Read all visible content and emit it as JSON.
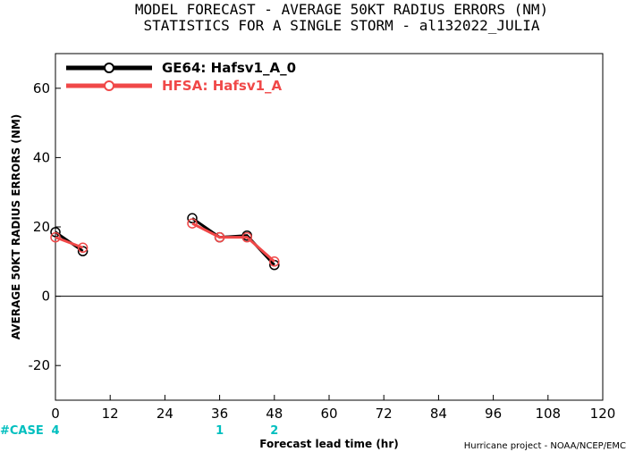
{
  "chart_data": {
    "type": "line",
    "title": "MODEL FORECAST - AVERAGE 50KT RADIUS ERRORS (NM)",
    "subtitle": "STATISTICS FOR A SINGLE STORM - al132022_JULIA",
    "xlabel": "Forecast lead time (hr)",
    "ylabel": "AVERAGE 50KT RADIUS ERRORS (NM)",
    "xlim": [
      0,
      120
    ],
    "ylim": [
      -30,
      70
    ],
    "xticks": [
      0,
      12,
      24,
      36,
      48,
      60,
      72,
      84,
      96,
      108,
      120
    ],
    "yticks": [
      -20,
      0,
      20,
      40,
      60
    ],
    "zero_line": true,
    "grid": false,
    "legend_position": "top-left",
    "series": [
      {
        "name": "GE64: Hafsv1_A_0",
        "color": "#000000",
        "segments": [
          [
            [
              0,
              18.5
            ],
            [
              6,
              13
            ]
          ],
          [
            [
              30,
              22.5
            ],
            [
              36,
              17
            ],
            [
              42,
              17.5
            ],
            [
              48,
              9
            ]
          ]
        ]
      },
      {
        "name": "HFSA: Hafsv1_A",
        "color": "#f04848",
        "segments": [
          [
            [
              0,
              17
            ],
            [
              6,
              14
            ]
          ],
          [
            [
              30,
              21
            ],
            [
              36,
              17
            ],
            [
              42,
              17
            ],
            [
              48,
              10
            ]
          ]
        ]
      }
    ],
    "case_label": "#CASE",
    "case_counts": [
      {
        "x": 0,
        "count": "4"
      },
      {
        "x": 36,
        "count": "1"
      },
      {
        "x": 48,
        "count": "2"
      }
    ],
    "case_color": "#00bfbf"
  },
  "credit": "Hurricane project - NOAA/NCEP/EMC"
}
